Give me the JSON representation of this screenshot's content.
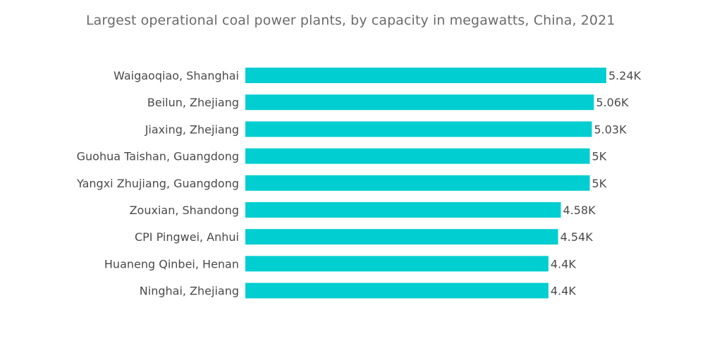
{
  "chart_data": {
    "type": "bar",
    "orientation": "horizontal",
    "title": "Largest operational coal power plants, by capacity in megawatts, China, 2021",
    "categories": [
      "Waigaoqiao, Shanghai",
      "Beilun, Zhejiang",
      "Jiaxing, Zhejiang",
      "Guohua Taishan, Guangdong",
      "Yangxi Zhujiang, Guangdong",
      "Zouxian, Shandong",
      "CPI Pingwei, Anhui",
      "Huaneng Qinbei, Henan",
      "Ninghai, Zhejiang"
    ],
    "values": [
      5240,
      5060,
      5030,
      5000,
      5000,
      4580,
      4540,
      4400,
      4400
    ],
    "value_labels": [
      "5.24K",
      "5.06K",
      "5.03K",
      "5K",
      "5K",
      "4.58K",
      "4.54K",
      "4.4K",
      "4.4K"
    ],
    "xlim": [
      0,
      5240
    ],
    "grid": false,
    "legend": "none",
    "bar_color": "#00ced1"
  }
}
